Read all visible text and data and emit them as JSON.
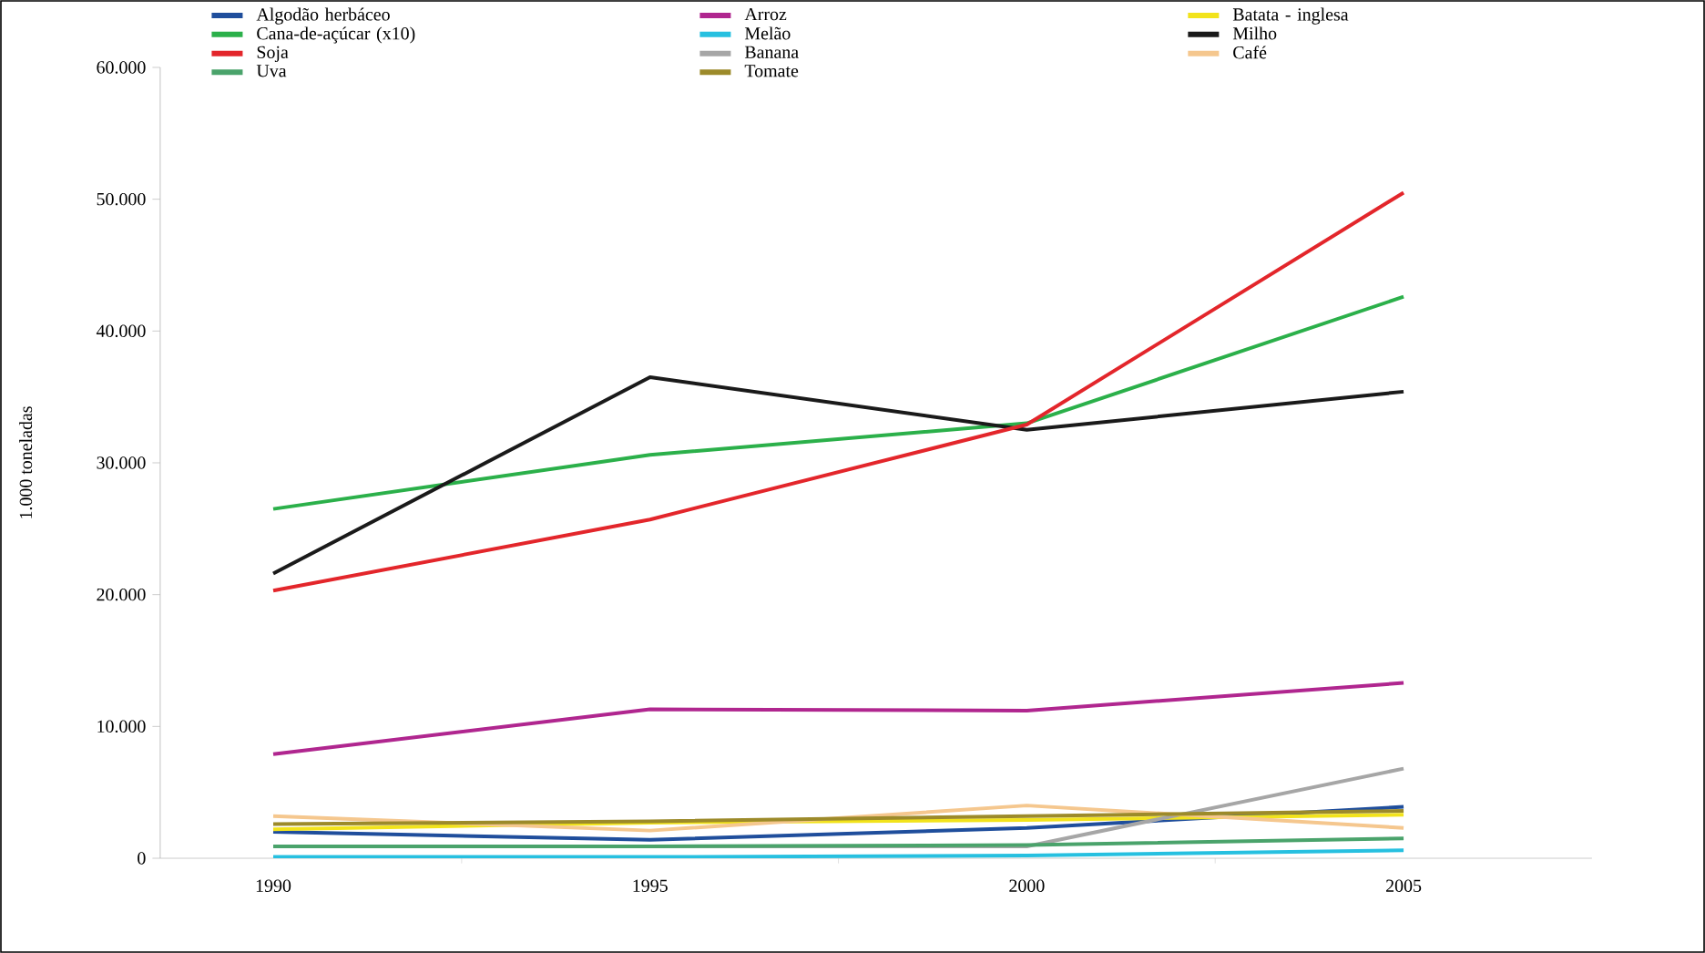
{
  "chart_data": {
    "type": "line",
    "ylabel": "1.000 toneladas",
    "categories": [
      "1990",
      "1995",
      "2000",
      "2005"
    ],
    "ylim": [
      0,
      60000
    ],
    "yticks": [
      {
        "value": 0,
        "label": "0"
      },
      {
        "value": 10000,
        "label": "10.000"
      },
      {
        "value": 20000,
        "label": "20.000"
      },
      {
        "value": 30000,
        "label": "30.000"
      },
      {
        "value": 40000,
        "label": "40.000"
      },
      {
        "value": 50000,
        "label": "50.000"
      },
      {
        "value": 60000,
        "label": "60.000"
      }
    ],
    "legend": "top",
    "grid": false,
    "marker": "none",
    "line_style": "solid",
    "series": [
      {
        "name": "Algodão herbáceo",
        "color": "#1f4e9c",
        "values": [
          2000,
          1400,
          2300,
          3900
        ]
      },
      {
        "name": "Arroz",
        "color": "#b0268f",
        "values": [
          7900,
          11300,
          11200,
          13300
        ]
      },
      {
        "name": "Batata - inglesa",
        "color": "#f2e31b",
        "values": [
          2200,
          2700,
          2900,
          3300
        ]
      },
      {
        "name": "Cana-de-açúcar (x10)",
        "color": "#2bb04a",
        "values": [
          26500,
          30600,
          33000,
          42600
        ]
      },
      {
        "name": "Melão",
        "color": "#27c0e0",
        "values": [
          100,
          100,
          200,
          600
        ]
      },
      {
        "name": "Milho",
        "color": "#1a1a1a",
        "values": [
          21600,
          36500,
          32500,
          35400
        ]
      },
      {
        "name": "Soja",
        "color": "#e3262b",
        "values": [
          20300,
          25700,
          32900,
          50500
        ]
      },
      {
        "name": "Banana",
        "color": "#a6a6a6",
        "values": [
          900,
          900,
          900,
          6800
        ]
      },
      {
        "name": "Café",
        "color": "#f5c78e",
        "values": [
          3200,
          2100,
          4000,
          2300
        ]
      },
      {
        "name": "Uva",
        "color": "#4aa36b",
        "values": [
          900,
          900,
          1000,
          1500
        ]
      },
      {
        "name": "Tomate",
        "color": "#9c8a2a",
        "values": [
          2600,
          2800,
          3200,
          3600
        ]
      }
    ]
  }
}
